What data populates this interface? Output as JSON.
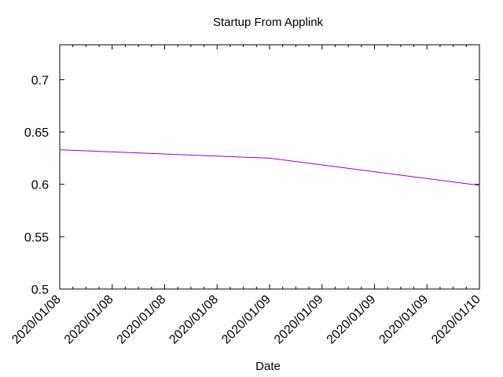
{
  "chart_data": {
    "type": "line",
    "title": "Startup From Applink",
    "xlabel": "Date",
    "ylabel": "",
    "ylim": [
      0.5,
      0.7333
    ],
    "yticks": [
      "0.5",
      "0.55",
      "0.6",
      "0.65",
      "0.7"
    ],
    "xticks": [
      "2020/01/08",
      "2020/01/08",
      "2020/01/08",
      "2020/01/08",
      "2020/01/09",
      "2020/01/09",
      "2020/01/09",
      "2020/01/09",
      "2020/01/10"
    ],
    "grid": false,
    "legend": "none",
    "series": [
      {
        "color": "#9400d3",
        "points": [
          {
            "x": 0,
            "y": 0.633
          },
          {
            "x": 4,
            "y": 0.625
          },
          {
            "x": 8,
            "y": 0.599
          }
        ]
      }
    ]
  }
}
